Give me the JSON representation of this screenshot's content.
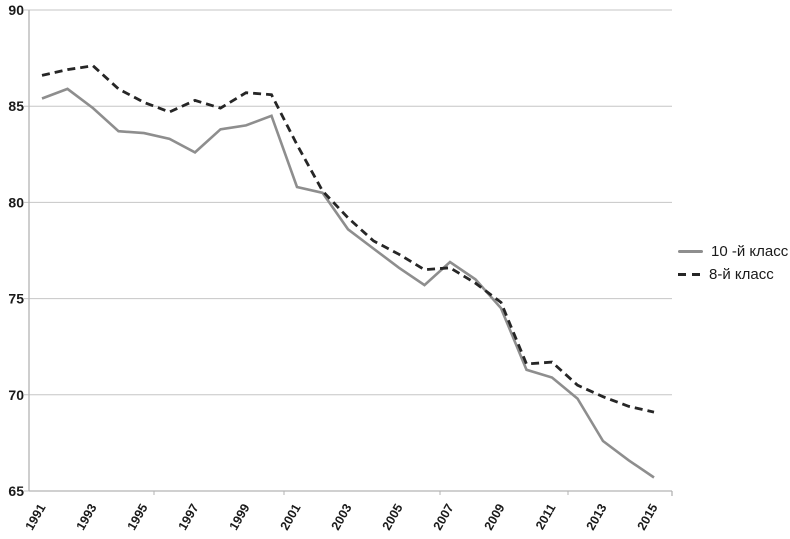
{
  "chart_data": {
    "type": "line",
    "title": "",
    "xlabel": "",
    "ylabel": "",
    "x": [
      1991,
      1992,
      1993,
      1994,
      1995,
      1996,
      1997,
      1998,
      1999,
      2000,
      2001,
      2002,
      2003,
      2004,
      2005,
      2006,
      2007,
      2008,
      2009,
      2010,
      2011,
      2012,
      2013,
      2014,
      2015
    ],
    "series": [
      {
        "name": "10 -й класс",
        "style": "solid",
        "color": "#8e8e8e",
        "values": [
          85.4,
          85.9,
          84.9,
          83.7,
          83.6,
          83.3,
          82.6,
          83.8,
          84.0,
          84.5,
          80.8,
          80.5,
          78.6,
          77.6,
          76.6,
          75.7,
          76.9,
          76.0,
          74.5,
          71.3,
          70.9,
          69.8,
          67.6,
          66.6,
          65.7
        ]
      },
      {
        "name": "8-й класс",
        "style": "dashed",
        "color": "#262626",
        "values": [
          86.6,
          86.9,
          87.1,
          85.9,
          85.2,
          84.7,
          85.3,
          84.9,
          85.7,
          85.6,
          83.0,
          80.6,
          79.2,
          78.0,
          77.3,
          76.5,
          76.6,
          75.8,
          74.8,
          71.6,
          71.7,
          70.5,
          69.9,
          69.4,
          69.1
        ]
      }
    ],
    "ylim": [
      65,
      90
    ],
    "yticks": [
      65,
      70,
      75,
      80,
      85,
      90
    ],
    "xtick_labels": [
      "1991",
      "1993",
      "1995",
      "1997",
      "1999",
      "2001",
      "2003",
      "2005",
      "2007",
      "2009",
      "2011",
      "2013",
      "2015"
    ],
    "grid": "horizontal",
    "legend_position": "right"
  },
  "colors": {
    "gridline": "#c6c6c6",
    "axis": "#b3b3b3",
    "tick_label": "#1a1a1a",
    "background": "#ffffff"
  }
}
